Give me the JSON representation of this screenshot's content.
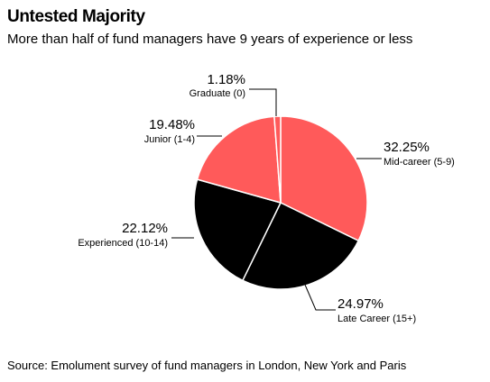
{
  "title": "Untested Majority",
  "subtitle": "More than half of fund managers have 9 years of experience or less",
  "source": "Source: Emolument survey of fund managers in London, New York and Paris",
  "colors": {
    "red": "#ff5a5a",
    "black": "#000000",
    "stroke": "#ffffff",
    "leader": "#000000"
  },
  "chart_data": {
    "type": "pie",
    "slices": [
      {
        "label": "Mid-career (5-9)",
        "value": 32.25,
        "value_label": "32.25%",
        "color": "#ff5a5a"
      },
      {
        "label": "Late Career (15+)",
        "value": 24.97,
        "value_label": "24.97%",
        "color": "#000000"
      },
      {
        "label": "Experienced (10-14)",
        "value": 22.12,
        "value_label": "22.12%",
        "color": "#000000"
      },
      {
        "label": "Junior (1-4)",
        "value": 19.48,
        "value_label": "19.48%",
        "color": "#ff5a5a"
      },
      {
        "label": "Graduate (0)",
        "value": 1.18,
        "value_label": "1.18%",
        "color": "#ff5a5a"
      }
    ]
  }
}
